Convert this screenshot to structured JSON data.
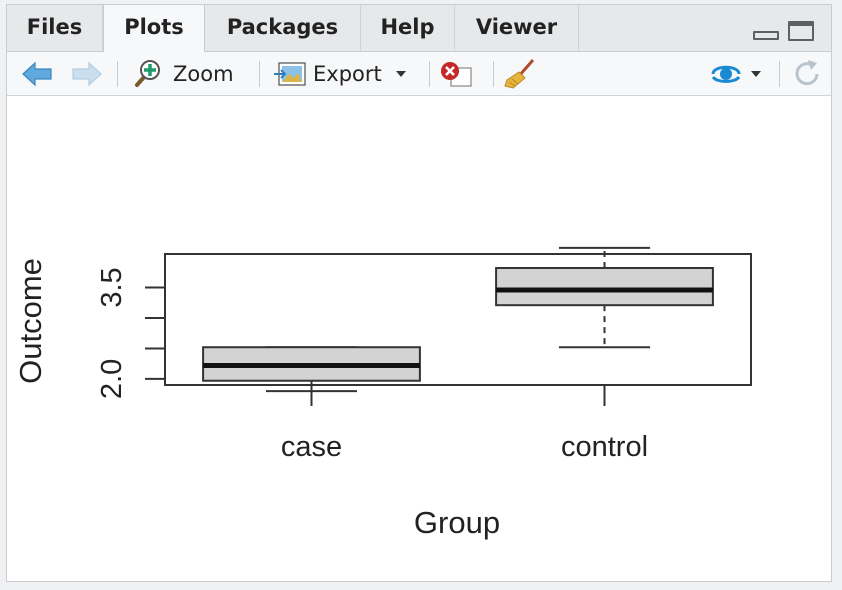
{
  "tabs": [
    {
      "label": "Files"
    },
    {
      "label": "Plots"
    },
    {
      "label": "Packages"
    },
    {
      "label": "Help"
    },
    {
      "label": "Viewer"
    }
  ],
  "active_tab": "Plots",
  "toolbar": {
    "zoom_label": "Zoom",
    "export_label": "Export",
    "icons": [
      "back-arrow-icon",
      "forward-arrow-icon",
      "zoom-icon",
      "export-image-icon",
      "remove-plot-icon",
      "broom-icon",
      "publish-icon",
      "refresh-icon"
    ]
  },
  "colors": {
    "accent": "#1a8ad4",
    "box_fill": "#d3d3d3"
  },
  "chart_data": {
    "type": "boxplot",
    "xlabel": "Group",
    "ylabel": "Outcome",
    "categories": [
      "case",
      "control"
    ],
    "yticks": [
      "2.0",
      "3.5"
    ],
    "ylim": [
      1.9,
      4.05
    ],
    "boxes": [
      {
        "category": "case",
        "whisker_low": 1.8,
        "q1": 1.97,
        "median": 2.22,
        "q3": 2.52,
        "whisker_high": 2.52
      },
      {
        "category": "control",
        "whisker_low": 2.52,
        "q1": 3.21,
        "median": 3.46,
        "q3": 3.82,
        "whisker_high": 4.15
      }
    ]
  }
}
